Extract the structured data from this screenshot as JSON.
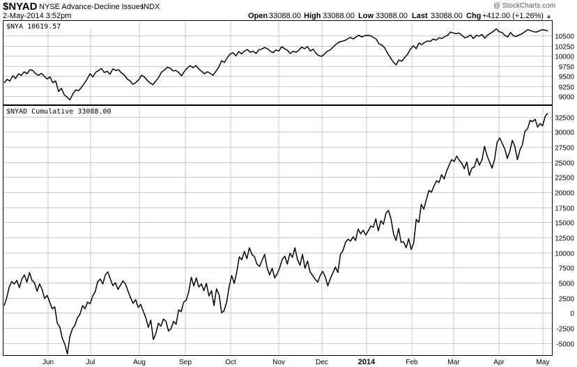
{
  "header": {
    "symbol": "$NYAD",
    "description": "NYSE Advance-Decline Issues",
    "exchange": "INDX",
    "datetime": "2-May-2014 3:52pm",
    "open_label": "Open",
    "open": "33088.00",
    "high_label": "High",
    "high": "33088.00",
    "low_label": "Low",
    "low": "33088.00",
    "last_label": "Last",
    "last": "33088.00",
    "chg_label": "Chg",
    "chg": "+412.00 (+1.26%)",
    "chg_arrow": "▲",
    "watermark": "@ StockCharts.com"
  },
  "colors": {
    "line": "#000000",
    "grid": "#c8c8c8",
    "up": "#1a7a1a"
  },
  "chart_data": [
    {
      "type": "line",
      "legend": "$NYA 10619.57",
      "ylim": [
        8800,
        10850
      ],
      "ticks": [
        9000,
        9250,
        9500,
        9750,
        10000,
        10250,
        10500
      ],
      "values": [
        9330,
        9420,
        9380,
        9510,
        9440,
        9560,
        9520,
        9610,
        9560,
        9660,
        9640,
        9560,
        9520,
        9570,
        9500,
        9430,
        9480,
        9340,
        9380,
        9120,
        9200,
        9040,
        8980,
        8910,
        9060,
        9160,
        9140,
        9220,
        9320,
        9430,
        9560,
        9480,
        9600,
        9640,
        9690,
        9590,
        9620,
        9550,
        9680,
        9640,
        9660,
        9580,
        9530,
        9430,
        9380,
        9300,
        9340,
        9410,
        9520,
        9480,
        9400,
        9330,
        9290,
        9380,
        9470,
        9600,
        9650,
        9720,
        9700,
        9630,
        9640,
        9590,
        9510,
        9620,
        9700,
        9760,
        9710,
        9760,
        9680,
        9620,
        9560,
        9610,
        9570,
        9520,
        9620,
        9720,
        9880,
        9840,
        9960,
        10050,
        10080,
        10000,
        10110,
        10050,
        10120,
        10160,
        10090,
        10120,
        10060,
        10150,
        10170,
        10210,
        10180,
        10120,
        10080,
        10150,
        10120,
        10230,
        10180,
        10140,
        10060,
        10120,
        10090,
        10140,
        10220,
        10180,
        10230,
        10120,
        10170,
        10060,
        10010,
        9990,
        10050,
        10120,
        10150,
        10220,
        10290,
        10340,
        10360,
        10380,
        10420,
        10460,
        10420,
        10470,
        10510,
        10470,
        10500,
        10510,
        10500,
        10460,
        10420,
        10300,
        10270,
        10200,
        10070,
        9960,
        9850,
        9780,
        9900,
        9870,
        9960,
        10040,
        10170,
        10250,
        10180,
        10320,
        10280,
        10340,
        10370,
        10360,
        10420,
        10390,
        10450,
        10430,
        10480,
        10510,
        10590,
        10570,
        10550,
        10570,
        10510,
        10450,
        10470,
        10520,
        10430,
        10510,
        10490,
        10530,
        10440,
        10520,
        10560,
        10610,
        10670,
        10600,
        10580,
        10510,
        10470,
        10580,
        10500,
        10480,
        10520,
        10550,
        10600,
        10650,
        10630,
        10600,
        10590,
        10620,
        10650,
        10640,
        10619.57
      ]
    },
    {
      "type": "line",
      "legend": "$NYAD Cumulative 33088.00",
      "ylim": [
        -7000,
        34200
      ],
      "ticks": [
        -5000,
        -2500,
        0,
        2500,
        5000,
        7500,
        10000,
        12500,
        15000,
        17500,
        20000,
        22500,
        25000,
        27500,
        30000,
        32500
      ],
      "values": [
        1200,
        2500,
        4300,
        5200,
        4800,
        5400,
        4200,
        5600,
        6300,
        5100,
        6700,
        5400,
        5000,
        3600,
        4800,
        3900,
        2400,
        2900,
        1800,
        700,
        1000,
        -1700,
        -2300,
        -4200,
        -5200,
        -6800,
        -3900,
        -2600,
        -2000,
        -800,
        -200,
        1200,
        700,
        1800,
        1500,
        2800,
        3500,
        5200,
        5600,
        4800,
        6300,
        6800,
        5600,
        4500,
        5000,
        3900,
        4600,
        5300,
        4800,
        3600,
        2500,
        1600,
        2200,
        900,
        1400,
        300,
        -800,
        -2400,
        -1200,
        -4400,
        -3400,
        -1700,
        -2200,
        -1000,
        -1400,
        -3000,
        -2600,
        -1400,
        -1900,
        500,
        200,
        1800,
        2100,
        3500,
        5900,
        4500,
        5800,
        4300,
        4800,
        3700,
        4900,
        2800,
        3700,
        1200,
        4000,
        3000,
        0,
        400,
        1800,
        4400,
        6200,
        4900,
        6800,
        9300,
        8800,
        10200,
        9000,
        10800,
        9700,
        9300,
        8100,
        7700,
        8700,
        9700,
        7500,
        6300,
        7400,
        5800,
        6500,
        7500,
        8900,
        9400,
        8100,
        9900,
        9200,
        10800,
        8900,
        7900,
        9700,
        7400,
        8600,
        6800,
        6200,
        5600,
        5100,
        6200,
        6900,
        6000,
        4500,
        5700,
        6600,
        7600,
        6700,
        9700,
        10300,
        11700,
        12200,
        11900,
        12600,
        12000,
        13900,
        13100,
        13700,
        12900,
        13600,
        14400,
        14200,
        15600,
        13600,
        15300,
        14700,
        16500,
        17000,
        15600,
        13100,
        12000,
        14000,
        11700,
        11800,
        10800,
        12300,
        10500,
        11600,
        15500,
        15000,
        18000,
        17200,
        18800,
        20300,
        20000,
        21000,
        21900,
        21600,
        22900,
        22200,
        23500,
        24500,
        25400,
        25100,
        26000,
        25300,
        24800,
        23900,
        25000,
        22800,
        24000,
        24200,
        25600,
        24500,
        25400,
        27600,
        26100,
        25000,
        24000,
        25500,
        28300,
        29000,
        28100,
        27200,
        25600,
        26800,
        28600,
        27600,
        25400,
        27000,
        27900,
        30100,
        30500,
        31900,
        31700,
        32100,
        30800,
        31400,
        31000,
        32600,
        33088
      ]
    }
  ],
  "x_axis": {
    "labels": [
      "Jun",
      "Jul",
      "Aug",
      "Sep",
      "Oct",
      "Nov",
      "Dec",
      "2014",
      "Feb",
      "Mar",
      "Apr",
      "May"
    ],
    "bold_label": "2014"
  }
}
